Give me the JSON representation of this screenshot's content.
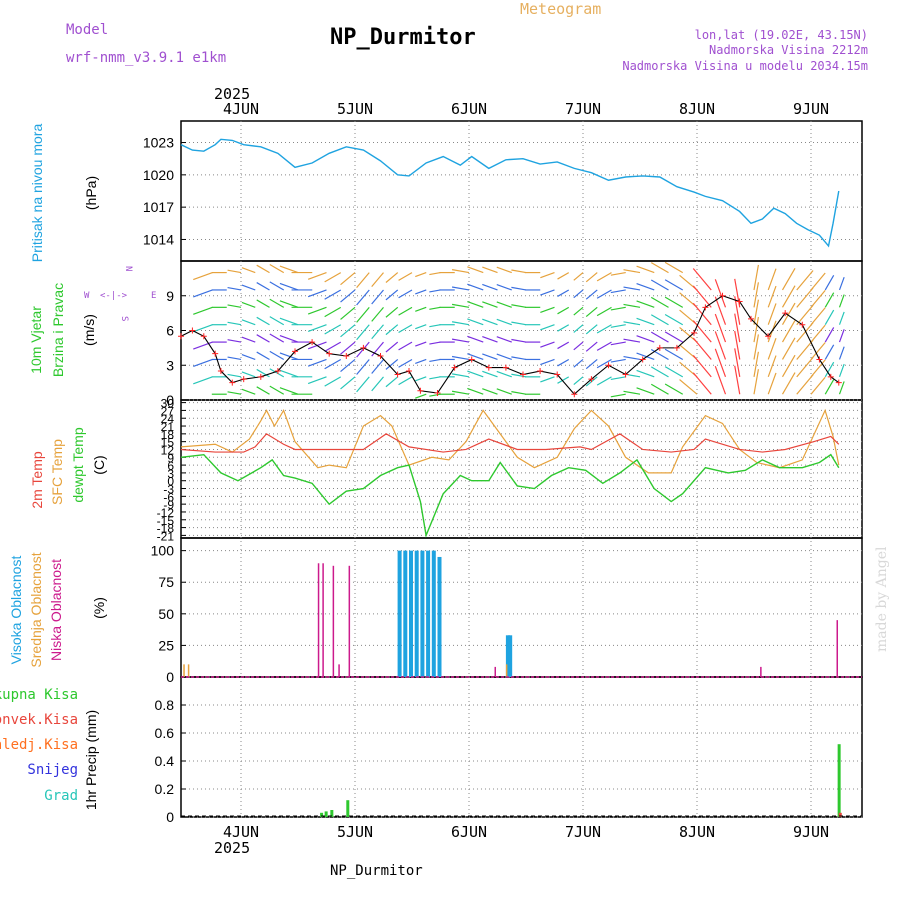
{
  "header": {
    "model_label": "Model",
    "model_name": "wrf-nmm_v3.9.1  e1km",
    "product": "Meteogram",
    "title": "NP_Durmitor",
    "coords": "lon,lat (19.02E, 43.15N)",
    "elevation": "Nadmorska Visina 2212m",
    "model_elevation": "Nadmorska Visina u modelu 2034.15m",
    "footer_station": "NP_Durmitor",
    "watermark": "made by Angel"
  },
  "time_axis": {
    "year": "2025",
    "days": [
      "4JUN",
      "5JUN",
      "6JUN",
      "7JUN",
      "8JUN",
      "9JUN"
    ]
  },
  "colors": {
    "pressure": "#1fa3e0",
    "temp_2m": "#e8463c",
    "temp_sfc": "#e6a23c",
    "dewpoint": "#2ec82e",
    "wind_speed": "#000000",
    "wind_marker": "#ff2020",
    "cloud_high": "#1fa3e0",
    "cloud_mid": "#e6a23c",
    "cloud_low": "#cc1a8c",
    "precip_total": "#2ec82e",
    "precip_conv": "#e8463c",
    "precip_frozen": "#ff7020",
    "precip_snow": "#3333dd",
    "precip_graupel": "#26c6b8",
    "model_text": "#a050d0",
    "title_text": "#000000",
    "product_text": "#e6b060"
  },
  "chart_data": [
    {
      "type": "line",
      "panel": "pressure",
      "ylabel_line1": "Pritisak na nivou mora",
      "unit": "(hPa)",
      "ylim": [
        1012,
        1025
      ],
      "yticks": [
        1014,
        1017,
        1020,
        1023
      ],
      "grid": true,
      "series": [
        {
          "x": [
            0,
            0.1,
            0.2,
            0.3,
            0.35,
            0.45,
            0.55,
            0.7,
            0.85,
            1.0,
            1.15,
            1.3,
            1.45,
            1.6,
            1.75,
            1.9,
            2.0,
            2.15,
            2.3,
            2.45,
            2.55,
            2.7,
            2.85,
            3.0,
            3.15,
            3.3,
            3.45,
            3.6,
            3.75,
            3.9,
            4.05,
            4.2,
            4.35,
            4.5,
            4.6,
            4.75,
            4.9,
            5.0,
            5.1,
            5.2,
            5.3,
            5.4,
            5.5,
            5.6,
            5.68,
            5.72,
            5.77
          ],
          "y": [
            1022.8,
            1022.3,
            1022.2,
            1022.8,
            1023.3,
            1023.2,
            1022.8,
            1022.6,
            1022.0,
            1020.7,
            1021.1,
            1022.0,
            1022.6,
            1022.3,
            1021.3,
            1020.0,
            1019.9,
            1021.1,
            1021.7,
            1020.9,
            1021.7,
            1020.6,
            1021.4,
            1021.5,
            1021.0,
            1021.2,
            1020.6,
            1020.2,
            1019.5,
            1019.8,
            1019.9,
            1019.8,
            1018.9,
            1018.4,
            1018.0,
            1017.6,
            1016.6,
            1015.5,
            1015.9,
            1016.9,
            1016.4,
            1015.5,
            1014.9,
            1014.4,
            1013.4,
            1015.5,
            1018.5
          ]
        }
      ]
    },
    {
      "type": "line",
      "panel": "wind",
      "ylabel_line1": "10m Vjetar",
      "ylabel_line2": "Brzina i Pravac",
      "unit": "(m/s)",
      "compass": {
        "n": "N",
        "s": "S",
        "w": "W",
        "e": "E"
      },
      "ylim": [
        0,
        12
      ],
      "yticks": [
        0,
        3,
        6,
        9
      ],
      "grid": true,
      "series": [
        {
          "x": [
            0,
            0.1,
            0.2,
            0.3,
            0.35,
            0.45,
            0.55,
            0.7,
            0.85,
            1.0,
            1.15,
            1.3,
            1.45,
            1.6,
            1.75,
            1.9,
            2.0,
            2.1,
            2.25,
            2.4,
            2.55,
            2.7,
            2.85,
            3.0,
            3.15,
            3.3,
            3.45,
            3.6,
            3.75,
            3.9,
            4.05,
            4.2,
            4.35,
            4.5,
            4.6,
            4.75,
            4.9,
            5.0,
            5.15,
            5.3,
            5.45,
            5.6,
            5.7,
            5.77
          ],
          "y": [
            5.5,
            6.0,
            5.5,
            4.0,
            2.5,
            1.5,
            1.8,
            2.0,
            2.5,
            4.2,
            5.0,
            4.0,
            3.8,
            4.5,
            3.8,
            2.2,
            2.5,
            0.8,
            0.6,
            2.8,
            3.5,
            2.8,
            2.8,
            2.2,
            2.5,
            2.2,
            0.5,
            1.8,
            3.0,
            2.2,
            3.5,
            4.5,
            4.5,
            5.8,
            8.0,
            9.0,
            8.5,
            7.0,
            5.5,
            7.5,
            6.5,
            3.5,
            2.0,
            1.5
          ]
        }
      ],
      "wind_vectors": {
        "x": [
          0,
          0.125,
          0.25,
          0.375,
          0.5,
          0.625,
          0.75,
          0.875,
          1.0,
          1.125,
          1.25,
          1.375,
          1.5,
          1.625,
          1.75,
          1.875,
          2.0,
          2.125,
          2.25,
          2.375,
          2.5,
          2.625,
          2.75,
          2.875,
          3.0,
          3.125,
          3.25,
          3.375,
          3.5,
          3.625,
          3.75,
          3.875,
          4.0,
          4.125,
          4.25,
          4.375,
          4.5,
          4.625,
          4.75,
          4.875,
          5.0,
          5.125,
          5.25,
          5.375,
          5.5,
          5.625,
          5.75
        ],
        "dir_deg": [
          210,
          230,
          250,
          270,
          280,
          290,
          300,
          300,
          290,
          270,
          250,
          240,
          230,
          220,
          220,
          230,
          240,
          250,
          260,
          270,
          280,
          290,
          290,
          290,
          280,
          270,
          250,
          240,
          230,
          230,
          240,
          260,
          280,
          290,
          300,
          300,
          310,
          320,
          340,
          350,
          10,
          20,
          30,
          40,
          40,
          30,
          20
        ]
      }
    },
    {
      "type": "line",
      "panel": "temperature",
      "ylabel_2m": "2m Temp",
      "ylabel_sfc": "SFC Temp",
      "ylabel_dew": "dewpt Temp",
      "unit": "(C)",
      "ylim": [
        -22,
        31
      ],
      "yticks": [
        30,
        27,
        24,
        21,
        18,
        15,
        12,
        9,
        6,
        3,
        0,
        -3,
        -6,
        -9,
        -12,
        -15,
        -18,
        -21
      ],
      "grid": true,
      "series": [
        {
          "name": "2m Temp",
          "x": [
            0,
            0.3,
            0.55,
            0.65,
            0.75,
            0.9,
            1.0,
            1.25,
            1.6,
            1.8,
            2.0,
            2.3,
            2.5,
            2.7,
            2.95,
            3.2,
            3.5,
            3.6,
            3.85,
            4.05,
            4.3,
            4.5,
            4.6,
            4.9,
            5.1,
            5.3,
            5.55,
            5.7,
            5.77
          ],
          "y": [
            12,
            11,
            11,
            13,
            18,
            14,
            12,
            12,
            12,
            18,
            13,
            11,
            12,
            16,
            12,
            12,
            13,
            12,
            18,
            12,
            11,
            12,
            16,
            12,
            11,
            12,
            15,
            17,
            14
          ]
        },
        {
          "name": "SFC Temp",
          "x": [
            0,
            0.3,
            0.45,
            0.6,
            0.7,
            0.75,
            0.82,
            0.9,
            1.0,
            1.2,
            1.3,
            1.45,
            1.6,
            1.75,
            1.85,
            2.0,
            2.2,
            2.35,
            2.5,
            2.65,
            2.8,
            2.95,
            3.1,
            3.3,
            3.45,
            3.6,
            3.75,
            3.9,
            4.1,
            4.3,
            4.4,
            4.6,
            4.75,
            4.9,
            5.05,
            5.25,
            5.45,
            5.65,
            5.72,
            5.77
          ],
          "y": [
            13,
            14,
            11,
            16,
            23,
            27,
            21,
            27,
            15,
            5,
            6,
            5,
            21,
            25,
            21,
            6,
            9,
            8,
            15,
            27,
            18,
            9,
            5,
            9,
            20,
            27,
            21,
            9,
            3,
            3,
            13,
            25,
            22,
            12,
            7,
            5,
            8,
            27,
            17,
            6
          ]
        },
        {
          "name": "dewpt Temp",
          "x": [
            0,
            0.2,
            0.35,
            0.5,
            0.7,
            0.8,
            0.9,
            1.0,
            1.15,
            1.3,
            1.45,
            1.6,
            1.75,
            1.9,
            2.0,
            2.1,
            2.15,
            2.3,
            2.45,
            2.55,
            2.7,
            2.8,
            2.95,
            3.1,
            3.25,
            3.4,
            3.55,
            3.7,
            3.85,
            4.0,
            4.15,
            4.3,
            4.4,
            4.6,
            4.8,
            4.95,
            5.1,
            5.25,
            5.45,
            5.6,
            5.7,
            5.77
          ],
          "y": [
            9,
            10,
            3,
            0,
            5,
            8,
            2,
            1,
            -1,
            -9,
            -4,
            -3,
            2,
            5,
            6,
            -8,
            -21,
            -5,
            2,
            0,
            0,
            7,
            -2,
            -3,
            2,
            5,
            4,
            -1,
            3,
            8,
            -3,
            -8,
            -5,
            5,
            3,
            4,
            8,
            5,
            5,
            7,
            10,
            5
          ]
        }
      ]
    },
    {
      "type": "bar",
      "panel": "clouds",
      "ylabel_high": "Visoka Oblacnost",
      "ylabel_mid": "Srednja Oblacnost",
      "ylabel_low": "Niska Oblacnost",
      "unit": "(%)",
      "ylim": [
        0,
        110
      ],
      "yticks": [
        0,
        25,
        50,
        75,
        100
      ],
      "grid": true,
      "series": [
        {
          "name": "Visoka Oblacnost",
          "x": [
            1.9,
            1.95,
            2.0,
            2.05,
            2.1,
            2.15,
            2.2,
            2.25,
            2.85,
            2.87
          ],
          "values": [
            100,
            100,
            100,
            100,
            100,
            100,
            100,
            95,
            33,
            33
          ]
        },
        {
          "name": "Srednja Oblacnost",
          "x": [
            0.02,
            0.06,
            2.85
          ],
          "values": [
            10,
            10,
            10
          ]
        },
        {
          "name": "Niska Oblacnost",
          "x": [
            1.2,
            1.24,
            1.33,
            1.38,
            1.47,
            2.75,
            5.08,
            5.75
          ],
          "values": [
            90,
            90,
            88,
            10,
            88,
            8,
            8,
            45
          ]
        }
      ]
    },
    {
      "type": "bar",
      "panel": "precipitation",
      "labels": {
        "total": "Ukupna Kisa",
        "convective": "Konvek.Kisa",
        "frozen": "Zaledj.Kisa",
        "snow": "Snijeg",
        "graupel": "Grad"
      },
      "ylabel": "1hr Precip (mm)",
      "ylim": [
        0,
        1.0
      ],
      "yticks": [
        0,
        0.2,
        0.4,
        0.6,
        0.8
      ],
      "grid": true,
      "series": [
        {
          "name": "Ukupna Kisa",
          "x": [
            1.22,
            1.26,
            1.31,
            1.45,
            5.76
          ],
          "values": [
            0.03,
            0.04,
            0.05,
            0.12,
            0.52
          ]
        },
        {
          "name": "Konvek.Kisa",
          "x": [
            5.77
          ],
          "values": [
            0.03
          ]
        }
      ]
    }
  ]
}
